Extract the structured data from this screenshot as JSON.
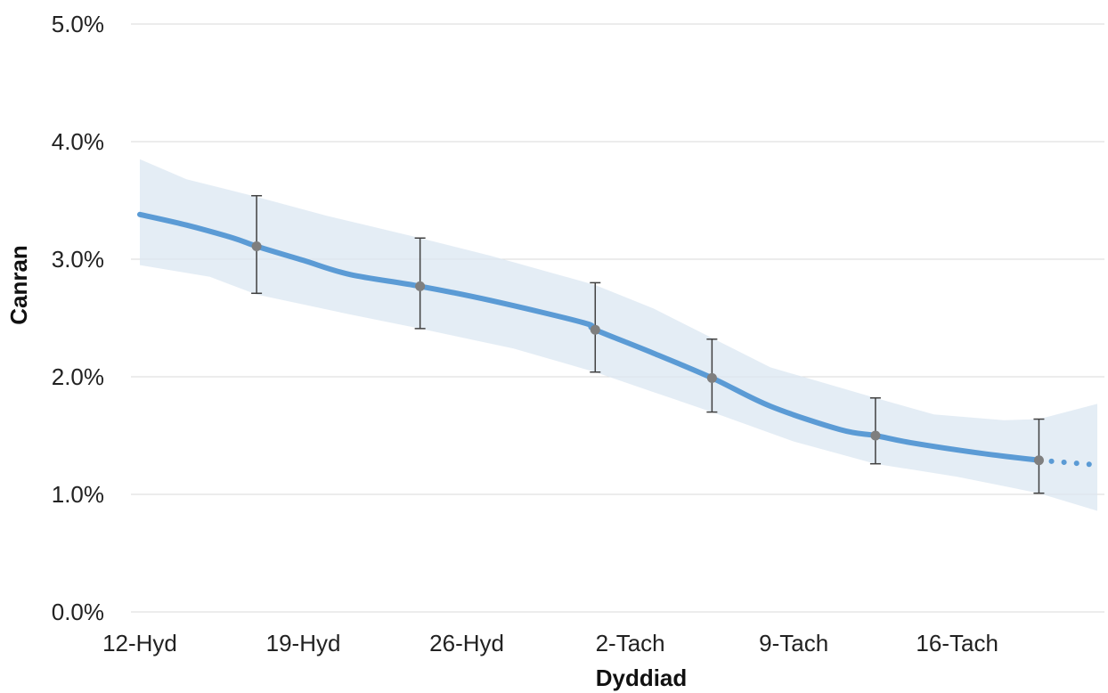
{
  "chart_data": {
    "type": "line",
    "xlabel": "Dyddiad",
    "ylabel": "Canran",
    "y_tick_labels": [
      "0.0%",
      "1.0%",
      "2.0%",
      "3.0%",
      "4.0%",
      "5.0%"
    ],
    "y_ticks": [
      0,
      1,
      2,
      3,
      4,
      5
    ],
    "ylim": [
      0,
      5
    ],
    "x_tick_labels": [
      "12-Hyd",
      "19-Hyd",
      "26-Hyd",
      "2-Tach",
      "9-Tach",
      "16-Tach"
    ],
    "x_tick_days": [
      0,
      7,
      14,
      21,
      28,
      35
    ],
    "xlim_days": [
      0,
      41
    ],
    "grid": "horizontal",
    "legend": "none",
    "colors": {
      "line": "#5b9bd5",
      "band": "#dbe7f1",
      "points": "#7f7f7f",
      "errorbars": "#404040",
      "grid": "#d9d9d9"
    },
    "series": [
      {
        "values": [
          {
            "x": 0,
            "y": 3.38
          },
          {
            "x": 2,
            "y": 3.29
          },
          {
            "x": 4,
            "y": 3.18
          },
          {
            "x": 5,
            "y": 3.11
          },
          {
            "x": 7,
            "y": 2.99
          },
          {
            "x": 9,
            "y": 2.87
          },
          {
            "x": 12,
            "y": 2.77
          },
          {
            "x": 15,
            "y": 2.65
          },
          {
            "x": 19,
            "y": 2.46
          },
          {
            "x": 19.5,
            "y": 2.4
          },
          {
            "x": 22,
            "y": 2.2
          },
          {
            "x": 24.5,
            "y": 1.99
          },
          {
            "x": 27,
            "y": 1.75
          },
          {
            "x": 30,
            "y": 1.55
          },
          {
            "x": 31.5,
            "y": 1.5
          },
          {
            "x": 33,
            "y": 1.44
          },
          {
            "x": 36,
            "y": 1.35
          },
          {
            "x": 38.5,
            "y": 1.29
          }
        ],
        "projection": [
          {
            "x": 38.5,
            "y": 1.29
          },
          {
            "x": 41,
            "y": 1.25
          }
        ]
      }
    ],
    "confidence_band": {
      "upper": [
        {
          "x": 0,
          "y": 3.85
        },
        {
          "x": 2,
          "y": 3.68
        },
        {
          "x": 5,
          "y": 3.53
        },
        {
          "x": 8,
          "y": 3.37
        },
        {
          "x": 12,
          "y": 3.18
        },
        {
          "x": 15,
          "y": 3.03
        },
        {
          "x": 19.5,
          "y": 2.78
        },
        {
          "x": 22,
          "y": 2.58
        },
        {
          "x": 24.5,
          "y": 2.33
        },
        {
          "x": 27,
          "y": 2.08
        },
        {
          "x": 31.5,
          "y": 1.82
        },
        {
          "x": 34,
          "y": 1.68
        },
        {
          "x": 37,
          "y": 1.63
        },
        {
          "x": 38.5,
          "y": 1.64
        },
        {
          "x": 41,
          "y": 1.77
        }
      ],
      "lower": [
        {
          "x": 0,
          "y": 2.95
        },
        {
          "x": 3,
          "y": 2.85
        },
        {
          "x": 5,
          "y": 2.7
        },
        {
          "x": 9,
          "y": 2.53
        },
        {
          "x": 12,
          "y": 2.41
        },
        {
          "x": 16,
          "y": 2.24
        },
        {
          "x": 19.5,
          "y": 2.04
        },
        {
          "x": 22,
          "y": 1.87
        },
        {
          "x": 24.5,
          "y": 1.7
        },
        {
          "x": 28,
          "y": 1.45
        },
        {
          "x": 31.5,
          "y": 1.26
        },
        {
          "x": 35,
          "y": 1.15
        },
        {
          "x": 38.5,
          "y": 1.01
        },
        {
          "x": 41,
          "y": 0.86
        }
      ]
    },
    "points_with_error": [
      {
        "x": 5,
        "y": 3.11,
        "low": 2.71,
        "high": 3.54
      },
      {
        "x": 12,
        "y": 2.77,
        "low": 2.41,
        "high": 3.18
      },
      {
        "x": 19.5,
        "y": 2.4,
        "low": 2.04,
        "high": 2.8
      },
      {
        "x": 24.5,
        "y": 1.99,
        "low": 1.7,
        "high": 2.32
      },
      {
        "x": 31.5,
        "y": 1.5,
        "low": 1.26,
        "high": 1.82
      },
      {
        "x": 38.5,
        "y": 1.29,
        "low": 1.01,
        "high": 1.64
      }
    ]
  }
}
